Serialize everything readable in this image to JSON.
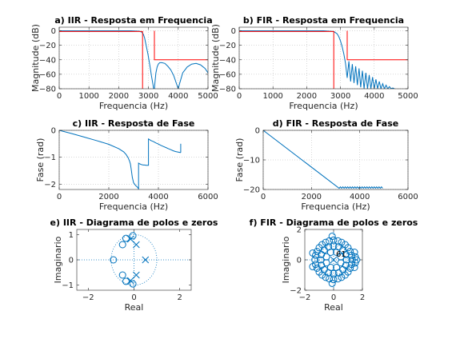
{
  "figure": {
    "background": "#ffffff"
  },
  "colors": {
    "response": "#0072bd",
    "spec": "#ff0000",
    "axis": "#262626",
    "grid": "#b0b0b0"
  },
  "chart_data": [
    {
      "id": "a",
      "type": "line",
      "title": "a) IIR - Resposta em Frequencia",
      "xlabel": "Frequencia (Hz)",
      "ylabel": "Magnitude (dB)",
      "xlim": [
        0,
        5000
      ],
      "ylim": [
        -80,
        5
      ],
      "xticks": [
        0,
        1000,
        2000,
        3000,
        4000,
        5000
      ],
      "yticks": [
        0,
        -20,
        -40,
        -60,
        -80
      ],
      "grid": true,
      "series": [
        {
          "style": "response",
          "x": [
            0,
            500,
            1000,
            1500,
            2000,
            2400,
            2700,
            2780,
            2830,
            2870,
            2900,
            2940,
            2980,
            3020,
            3060,
            3100,
            3150,
            3180,
            3200,
            3220,
            3250,
            3290,
            3330,
            3380,
            3450,
            3550,
            3650,
            3750,
            3850,
            3950,
            4000,
            4050,
            4150,
            4300,
            4450,
            4600,
            4750,
            4900,
            5000
          ],
          "y": [
            0,
            0,
            0,
            0,
            0,
            0,
            -0.5,
            -2,
            -5,
            -10,
            -16,
            -24,
            -32,
            -41,
            -51,
            -62,
            -74,
            -82,
            -80,
            -70,
            -58,
            -50,
            -46,
            -44,
            -44,
            -45,
            -49,
            -54,
            -62,
            -74,
            -80,
            -72,
            -58,
            -50,
            -46,
            -45,
            -47,
            -52,
            -58
          ]
        },
        {
          "style": "spec",
          "x": [
            0,
            2800,
            2800
          ],
          "y": [
            -1,
            -1,
            -80
          ]
        },
        {
          "style": "spec",
          "x": [
            3200,
            3200,
            5000
          ],
          "y": [
            0,
            -40,
            -40
          ]
        }
      ]
    },
    {
      "id": "b",
      "type": "line",
      "title": "b) FIR - Resposta em Frequencia",
      "xlabel": "Frequencia (Hz)",
      "ylabel": "Magnitude (dB)",
      "xlim": [
        0,
        5000
      ],
      "ylim": [
        -80,
        5
      ],
      "xticks": [
        0,
        1000,
        2000,
        3000,
        4000,
        5000
      ],
      "yticks": [
        0,
        -20,
        -40,
        -60,
        -80
      ],
      "grid": true,
      "series": [
        {
          "style": "response",
          "x": [
            0,
            500,
            1000,
            1500,
            2000,
            2500,
            2800,
            2900,
            2950,
            3000,
            3050,
            3100,
            3150,
            3200,
            3250,
            3300,
            3350,
            3400,
            3450,
            3500,
            3550,
            3600,
            3650,
            3700,
            3750,
            3800,
            3850,
            3900,
            3950,
            4000,
            4050,
            4100,
            4150,
            4200,
            4250,
            4300,
            4350,
            4400,
            4450,
            4500,
            4550,
            4600
          ],
          "y": [
            0,
            0,
            0,
            0,
            0,
            0,
            -1,
            -4,
            -8,
            -14,
            -22,
            -32,
            -45,
            -65,
            -42,
            -70,
            -46,
            -72,
            -49,
            -75,
            -52,
            -78,
            -55,
            -80,
            -58,
            -80,
            -61,
            -80,
            -64,
            -80,
            -67,
            -80,
            -70,
            -80,
            -73,
            -80,
            -75,
            -80,
            -77,
            -80,
            -79,
            -80
          ]
        },
        {
          "style": "spec",
          "x": [
            0,
            2800,
            2800
          ],
          "y": [
            -1,
            -1,
            -80
          ]
        },
        {
          "style": "spec",
          "x": [
            3200,
            3200,
            5000
          ],
          "y": [
            0,
            -40,
            -40
          ]
        }
      ]
    },
    {
      "id": "c",
      "type": "line",
      "title": "c) IIR - Resposta de Fase",
      "xlabel": "Frequencia (Hz)",
      "ylabel": "Fase (rad)",
      "xlim": [
        0,
        6000
      ],
      "ylim": [
        -2.2,
        0
      ],
      "xticks": [
        0,
        2000,
        4000,
        6000
      ],
      "yticks": [
        0,
        -1,
        -2
      ],
      "grid": true,
      "series": [
        {
          "style": "response",
          "x": [
            0,
            500,
            1000,
            1500,
            2000,
            2400,
            2600,
            2700,
            2780,
            2840,
            2870,
            2900,
            2950,
            3000,
            3080,
            3160,
            3200,
            3200,
            3250,
            3300,
            3350,
            3400,
            3450,
            3500,
            3560,
            3600,
            3600,
            3700,
            3800,
            3900,
            4000,
            4100,
            4200,
            4300,
            4400,
            4500,
            4600,
            4700,
            4800,
            4900
          ],
          "y": [
            0,
            -0.12,
            -0.25,
            -0.38,
            -0.52,
            -0.68,
            -0.8,
            -0.9,
            -1.02,
            -1.15,
            -1.25,
            -1.42,
            -1.75,
            -1.95,
            -2.05,
            -2.12,
            -2.18,
            -1.22,
            -1.25,
            -1.27,
            -1.28,
            -1.29,
            -1.29,
            -1.3,
            -1.3,
            -1.3,
            -0.32,
            -0.38,
            -0.42,
            -0.47,
            -0.51,
            -0.56,
            -0.6,
            -0.64,
            -0.68,
            -0.72,
            -0.76,
            -0.79,
            -0.81,
            -0.83
          ]
        },
        {
          "style": "response",
          "x": [
            4900,
            4900
          ],
          "y": [
            -0.5,
            -0.83
          ]
        }
      ]
    },
    {
      "id": "d",
      "type": "line",
      "title": "d) FIR - Resposta de Fase",
      "xlabel": "Frequencia (Hz)",
      "ylabel": "Fase (rad)",
      "xlim": [
        0,
        6000
      ],
      "ylim": [
        -20,
        0
      ],
      "xticks": [
        0,
        2000,
        4000,
        6000
      ],
      "yticks": [
        0,
        -10,
        -20
      ],
      "grid": true,
      "series": [
        {
          "style": "response",
          "x": [
            0,
            3150,
            3200,
            3250,
            3300,
            3350,
            3400,
            3450,
            3500,
            3550,
            3600,
            3650,
            3700,
            3750,
            3800,
            3850,
            3900,
            3950,
            4000,
            4050,
            4100,
            4150,
            4200,
            4250,
            4300,
            4350,
            4400,
            4450,
            4500,
            4550,
            4600,
            4650,
            4700,
            4750,
            4800,
            4850,
            4900,
            4950
          ],
          "y": [
            0,
            -19.6,
            -19.1,
            -19.6,
            -19.1,
            -19.6,
            -19.1,
            -19.6,
            -19.1,
            -19.6,
            -19.1,
            -19.6,
            -19.1,
            -19.6,
            -19.1,
            -19.6,
            -19.1,
            -19.6,
            -19.1,
            -19.6,
            -19.1,
            -19.6,
            -19.1,
            -19.6,
            -19.1,
            -19.6,
            -19.1,
            -19.6,
            -19.1,
            -19.6,
            -19.1,
            -19.6,
            -19.1,
            -19.6,
            -19.1,
            -19.6,
            -19.1,
            -19.6
          ]
        }
      ]
    },
    {
      "id": "e",
      "type": "scatter",
      "title": "e) IIR - Diagrama de polos e zeros",
      "xlabel": "Real",
      "ylabel": "Imaginario",
      "xlim": [
        -2.5,
        2.5
      ],
      "ylim": [
        -1.2,
        1.2
      ],
      "xticks": [
        -2,
        0,
        2
      ],
      "yticks": [
        -1,
        0,
        1
      ],
      "unit_circle": true,
      "zeros": [
        [
          -0.9,
          0
        ],
        [
          -0.5,
          0.6
        ],
        [
          -0.5,
          -0.6
        ],
        [
          -0.35,
          0.85
        ],
        [
          -0.35,
          -0.85
        ],
        [
          -0.05,
          0.95
        ],
        [
          -0.05,
          -0.95
        ]
      ],
      "poles": [
        [
          0.5,
          0
        ],
        [
          -0.15,
          0.82
        ],
        [
          -0.15,
          -0.82
        ],
        [
          0.1,
          0.6
        ],
        [
          0.1,
          -0.6
        ]
      ]
    },
    {
      "id": "f",
      "type": "scatter",
      "title": "f) FIR - Diagrama de polos e zeros",
      "xlabel": "Real",
      "ylabel": "Imaginario",
      "xlim": [
        -2,
        2
      ],
      "ylim": [
        -2,
        2
      ],
      "xticks": [
        -2,
        0,
        2
      ],
      "yticks": [
        -2,
        0,
        2
      ],
      "unit_circle": true,
      "pole_count_label": "61",
      "zeros": [
        [
          1.3,
          0
        ],
        [
          1.25,
          0.3
        ],
        [
          1.25,
          -0.3
        ],
        [
          1.15,
          0.55
        ],
        [
          1.15,
          -0.55
        ],
        [
          1.0,
          0.8
        ],
        [
          1.0,
          -0.8
        ],
        [
          0.8,
          1.0
        ],
        [
          0.8,
          -1.0
        ],
        [
          0.55,
          1.15
        ],
        [
          0.55,
          -1.15
        ],
        [
          0.3,
          1.25
        ],
        [
          0.3,
          -1.25
        ],
        [
          0,
          1.3
        ],
        [
          0,
          -1.3
        ],
        [
          -0.3,
          1.25
        ],
        [
          -0.3,
          -1.25
        ],
        [
          -0.55,
          1.15
        ],
        [
          -0.55,
          -1.15
        ],
        [
          -0.8,
          1.0
        ],
        [
          -0.8,
          -1.0
        ],
        [
          -1.0,
          0.8
        ],
        [
          -1.0,
          -0.8
        ],
        [
          -1.15,
          0.55
        ],
        [
          -1.15,
          -0.55
        ],
        [
          -1.25,
          0.3
        ],
        [
          -1.25,
          -0.3
        ],
        [
          -1.3,
          0
        ],
        [
          0.9,
          0
        ],
        [
          0.85,
          0.35
        ],
        [
          0.85,
          -0.35
        ],
        [
          0.65,
          0.65
        ],
        [
          0.65,
          -0.65
        ],
        [
          0.35,
          0.85
        ],
        [
          0.35,
          -0.85
        ],
        [
          0,
          0.9
        ],
        [
          0,
          -0.9
        ],
        [
          -0.35,
          0.85
        ],
        [
          -0.35,
          -0.85
        ],
        [
          -0.65,
          0.65
        ],
        [
          -0.65,
          -0.65
        ],
        [
          -0.85,
          0.35
        ],
        [
          -0.85,
          -0.35
        ],
        [
          -0.9,
          0
        ],
        [
          0.5,
          0.2
        ],
        [
          0.5,
          -0.2
        ],
        [
          0.2,
          0.5
        ],
        [
          0.2,
          -0.5
        ],
        [
          -0.2,
          0.5
        ],
        [
          -0.2,
          -0.5
        ],
        [
          -0.5,
          0.2
        ],
        [
          -0.5,
          -0.2
        ],
        [
          1.5,
          0.2
        ],
        [
          1.5,
          -0.2
        ],
        [
          1.45,
          0.5
        ],
        [
          1.45,
          -0.5
        ],
        [
          1.6,
          0
        ],
        [
          -1.45,
          0.45
        ],
        [
          -1.45,
          -0.45
        ],
        [
          -0.1,
          1.55
        ],
        [
          -0.1,
          -1.55
        ]
      ],
      "poles": [
        [
          0,
          0
        ]
      ]
    }
  ]
}
